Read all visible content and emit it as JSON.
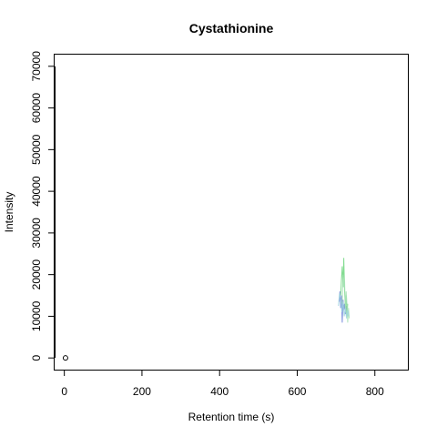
{
  "chart_data": {
    "type": "line",
    "title": "Cystathionine",
    "xlabel": "Retention time (s)",
    "ylabel": "Intensity",
    "xlim": [
      -25,
      885
    ],
    "ylim": [
      -2800,
      72800
    ],
    "xticks": [
      0,
      200,
      400,
      600,
      800
    ],
    "yticks": [
      0,
      10000,
      20000,
      30000,
      40000,
      50000,
      60000,
      70000
    ],
    "grid": false,
    "point": {
      "x": 3,
      "y": 0
    },
    "series": [
      {
        "color": "#6a7fd8",
        "x": [
          708,
          710,
          712,
          714,
          716,
          718,
          720,
          722,
          724,
          726
        ],
        "y": [
          13500,
          16000,
          12000,
          15000,
          8500,
          14000,
          11500,
          13000,
          10500,
          12500
        ]
      },
      {
        "color": "#6fd67f",
        "x": [
          712,
          714,
          716,
          718,
          720,
          722,
          724,
          726,
          728,
          730
        ],
        "y": [
          15000,
          19000,
          22000,
          17000,
          24000,
          16000,
          12000,
          15000,
          10000,
          13000
        ]
      },
      {
        "color": "#a6e2b5",
        "x": [
          716,
          718,
          720,
          722,
          724,
          726,
          728,
          730,
          732,
          734
        ],
        "y": [
          13000,
          20000,
          17000,
          18500,
          11000,
          16000,
          13000,
          8500,
          12000,
          9500
        ]
      },
      {
        "color": "#9fd3df",
        "x": [
          706,
          709,
          712,
          715,
          718,
          721,
          724,
          727,
          730,
          733
        ],
        "y": [
          12500,
          15500,
          14000,
          11000,
          13500,
          10000,
          12000,
          9500,
          11500,
          10000
        ]
      }
    ]
  }
}
